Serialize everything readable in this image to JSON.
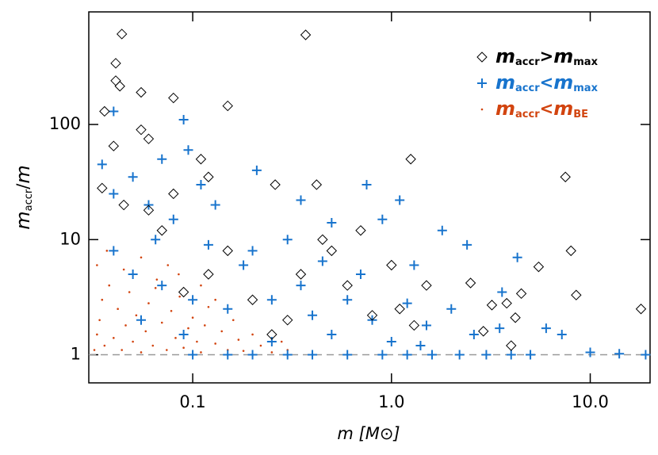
{
  "chart_data": {
    "type": "scatter",
    "xlabel": "m   [M⊙]",
    "ylabel": "maccr/m",
    "xscale": "log",
    "yscale": "log",
    "xlim": [
      0.03,
      20
    ],
    "ylim": [
      0.57,
      950
    ],
    "xticks": [
      {
        "value": 0.1,
        "label": "0.1"
      },
      {
        "value": 1,
        "label": "1.0"
      },
      {
        "value": 10,
        "label": "10.0"
      }
    ],
    "yticks": [
      1,
      10,
      100
    ],
    "legend_loc": "upper right",
    "series": [
      {
        "name": "maccr>mmax",
        "color": "#000000",
        "marker": "diamond",
        "x": [
          0.044,
          0.37,
          0.041,
          0.041,
          0.043,
          0.036,
          0.055,
          0.08,
          0.15,
          0.055,
          0.04,
          0.06,
          0.11,
          0.12,
          0.26,
          0.42,
          1.25,
          7.5,
          0.08,
          0.06,
          0.035,
          0.5,
          0.7,
          0.45,
          1.0,
          1.5,
          2.5,
          3.2,
          3.8,
          4.5,
          5.5,
          8.0,
          8.5,
          18,
          4.2,
          4.0,
          2.9,
          0.2,
          0.3,
          0.12,
          0.09,
          0.35,
          0.6,
          1.1,
          0.25,
          0.15,
          0.07,
          0.045,
          1.3,
          0.8
        ],
        "values": [
          610,
          600,
          340,
          240,
          215,
          130,
          190,
          170,
          145,
          90,
          65,
          75,
          50,
          35,
          30,
          30,
          50,
          35,
          25,
          18,
          28,
          8,
          12,
          10,
          6,
          4,
          4.2,
          2.7,
          2.8,
          3.4,
          5.8,
          8,
          3.3,
          2.5,
          2.1,
          1.2,
          1.6,
          3,
          2,
          5,
          3.5,
          5,
          4,
          2.5,
          1.5,
          8,
          12,
          20,
          1.8,
          2.2
        ]
      },
      {
        "name": "maccr<mmax",
        "color": "#1874cd",
        "marker": "plus",
        "x": [
          0.04,
          0.035,
          0.04,
          0.05,
          0.06,
          0.07,
          0.09,
          0.095,
          0.11,
          0.13,
          0.21,
          0.35,
          0.75,
          1.1,
          0.9,
          1.8,
          0.5,
          0.3,
          0.2,
          0.12,
          0.04,
          0.05,
          0.07,
          0.1,
          0.15,
          0.25,
          0.4,
          0.6,
          0.8,
          1.2,
          1.5,
          2,
          2.6,
          3.5,
          6,
          7.2,
          10,
          14,
          19,
          5,
          4,
          3,
          2.2,
          1.6,
          1.2,
          0.9,
          0.6,
          0.4,
          0.3,
          0.2,
          0.15,
          0.1,
          3.6,
          4.3,
          2.4,
          1.3,
          0.35,
          0.18,
          0.08,
          0.065,
          0.055,
          0.09,
          0.25,
          0.5,
          1.0,
          1.4,
          0.7,
          0.45
        ],
        "values": [
          130,
          45,
          25,
          35,
          20,
          50,
          110,
          60,
          30,
          20,
          40,
          22,
          30,
          22,
          15,
          12,
          14,
          10,
          8,
          9,
          8,
          5,
          4,
          3,
          2.5,
          3,
          2.2,
          3,
          2,
          2.8,
          1.8,
          2.5,
          1.5,
          1.7,
          1.7,
          1.5,
          1.05,
          1.02,
          1,
          1,
          1,
          1,
          1,
          1,
          1,
          1,
          1,
          1,
          1,
          1,
          1,
          1,
          3.5,
          7,
          9,
          6,
          4,
          6,
          15,
          10,
          2,
          1.5,
          1.3,
          1.5,
          1.3,
          1.2,
          5,
          6.5
        ]
      },
      {
        "name": "maccr<mBE",
        "color": "#d2440f",
        "marker": "dot",
        "x": [
          0.032,
          0.033,
          0.034,
          0.035,
          0.036,
          0.038,
          0.04,
          0.042,
          0.044,
          0.046,
          0.048,
          0.05,
          0.052,
          0.055,
          0.058,
          0.06,
          0.063,
          0.066,
          0.07,
          0.074,
          0.078,
          0.082,
          0.086,
          0.09,
          0.095,
          0.1,
          0.105,
          0.11,
          0.115,
          0.12,
          0.13,
          0.14,
          0.15,
          0.16,
          0.17,
          0.18,
          0.2,
          0.22,
          0.25,
          0.28,
          0.033,
          0.037,
          0.045,
          0.055,
          0.065,
          0.075,
          0.085,
          0.11,
          0.13,
          0.3
        ],
        "values": [
          1.1,
          1.5,
          2,
          3,
          1.2,
          4,
          1.4,
          2.5,
          1.1,
          1.8,
          3.5,
          1.3,
          2.2,
          1.05,
          1.6,
          2.8,
          1.2,
          4.5,
          1.9,
          1.1,
          2.4,
          1.4,
          3.2,
          1.15,
          1.7,
          2.1,
          1.3,
          1.05,
          1.8,
          2.6,
          1.25,
          1.6,
          1.1,
          2,
          1.35,
          1.08,
          1.5,
          1.2,
          1.05,
          1.3,
          6,
          8,
          5.5,
          7,
          3.8,
          6,
          5,
          4,
          3,
          1.1
        ]
      }
    ]
  }
}
